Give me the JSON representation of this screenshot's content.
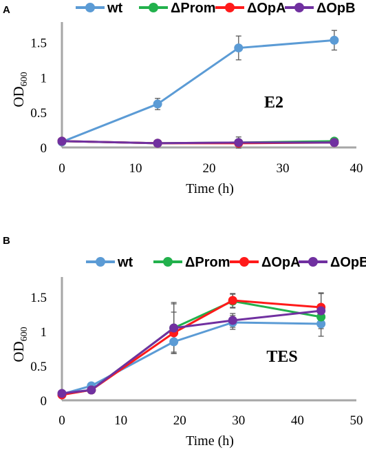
{
  "chart_data": [
    {
      "panel_label": "A",
      "type": "line",
      "annotation": "E2",
      "xlabel": "Time (h)",
      "ylabel": {
        "main": "OD",
        "sub": "600"
      },
      "xlim": [
        0,
        40
      ],
      "ylim": [
        0,
        1.75
      ],
      "xticks": [
        0,
        10,
        20,
        30,
        40
      ],
      "yticks": [
        0,
        0.5,
        1,
        1.5
      ],
      "ytick_labels": [
        "0",
        "0.5",
        "1",
        "1.5"
      ],
      "legend_position": "top",
      "series": [
        {
          "name": "wt",
          "color": "#5b9bd5",
          "x": [
            0,
            13,
            24,
            37
          ],
          "y": [
            0.08,
            0.62,
            1.42,
            1.53
          ],
          "err": [
            0.0,
            0.08,
            0.17,
            0.14
          ]
        },
        {
          "name": "ΔProm",
          "color": "#22b14c",
          "x": [
            0,
            13,
            24,
            37
          ],
          "y": [
            0.09,
            0.06,
            0.07,
            0.09
          ],
          "err": [
            0.0,
            0.0,
            0.0,
            0.0
          ]
        },
        {
          "name": "ΔOpA",
          "color": "#ff1a1a",
          "x": [
            0,
            13,
            24,
            37
          ],
          "y": [
            0.09,
            0.06,
            0.06,
            0.07
          ],
          "err": [
            0.0,
            0.0,
            0.0,
            0.0
          ]
        },
        {
          "name": "ΔOpB",
          "color": "#7030a0",
          "x": [
            0,
            13,
            24,
            37
          ],
          "y": [
            0.09,
            0.06,
            0.07,
            0.07
          ],
          "err": [
            0.0,
            0.0,
            0.08,
            0.0
          ]
        }
      ]
    },
    {
      "panel_label": "B",
      "type": "line",
      "annotation": "TES",
      "xlabel": "Time (h)",
      "ylabel": {
        "main": "OD",
        "sub": "600"
      },
      "xlim": [
        0,
        50
      ],
      "ylim": [
        0,
        1.75
      ],
      "xticks": [
        0,
        10,
        20,
        30,
        40,
        50
      ],
      "yticks": [
        0,
        0.5,
        1,
        1.5
      ],
      "ytick_labels": [
        "0",
        "0.5",
        "1",
        "1.5"
      ],
      "legend_position": "top",
      "series": [
        {
          "name": "wt",
          "color": "#5b9bd5",
          "x": [
            0,
            5,
            19,
            29,
            44
          ],
          "y": [
            0.09,
            0.21,
            0.85,
            1.13,
            1.11
          ],
          "err": [
            0.0,
            0.0,
            0.17,
            0.1,
            0.18
          ]
        },
        {
          "name": "ΔProm",
          "color": "#22b14c",
          "x": [
            0,
            5,
            19,
            29,
            44
          ],
          "y": [
            0.09,
            0.15,
            1.05,
            1.44,
            1.21
          ],
          "err": [
            0.0,
            0.0,
            0.35,
            0.1,
            0.0
          ]
        },
        {
          "name": "ΔOpA",
          "color": "#ff1a1a",
          "x": [
            0,
            5,
            19,
            29,
            44
          ],
          "y": [
            0.08,
            0.15,
            0.98,
            1.45,
            1.35
          ],
          "err": [
            0.0,
            0.0,
            0.3,
            0.1,
            0.2
          ]
        },
        {
          "name": "ΔOpB",
          "color": "#7030a0",
          "x": [
            0,
            5,
            19,
            29,
            44
          ],
          "y": [
            0.1,
            0.15,
            1.05,
            1.16,
            1.3
          ],
          "err": [
            0.0,
            0.0,
            0.37,
            0.1,
            0.26
          ]
        }
      ]
    }
  ]
}
